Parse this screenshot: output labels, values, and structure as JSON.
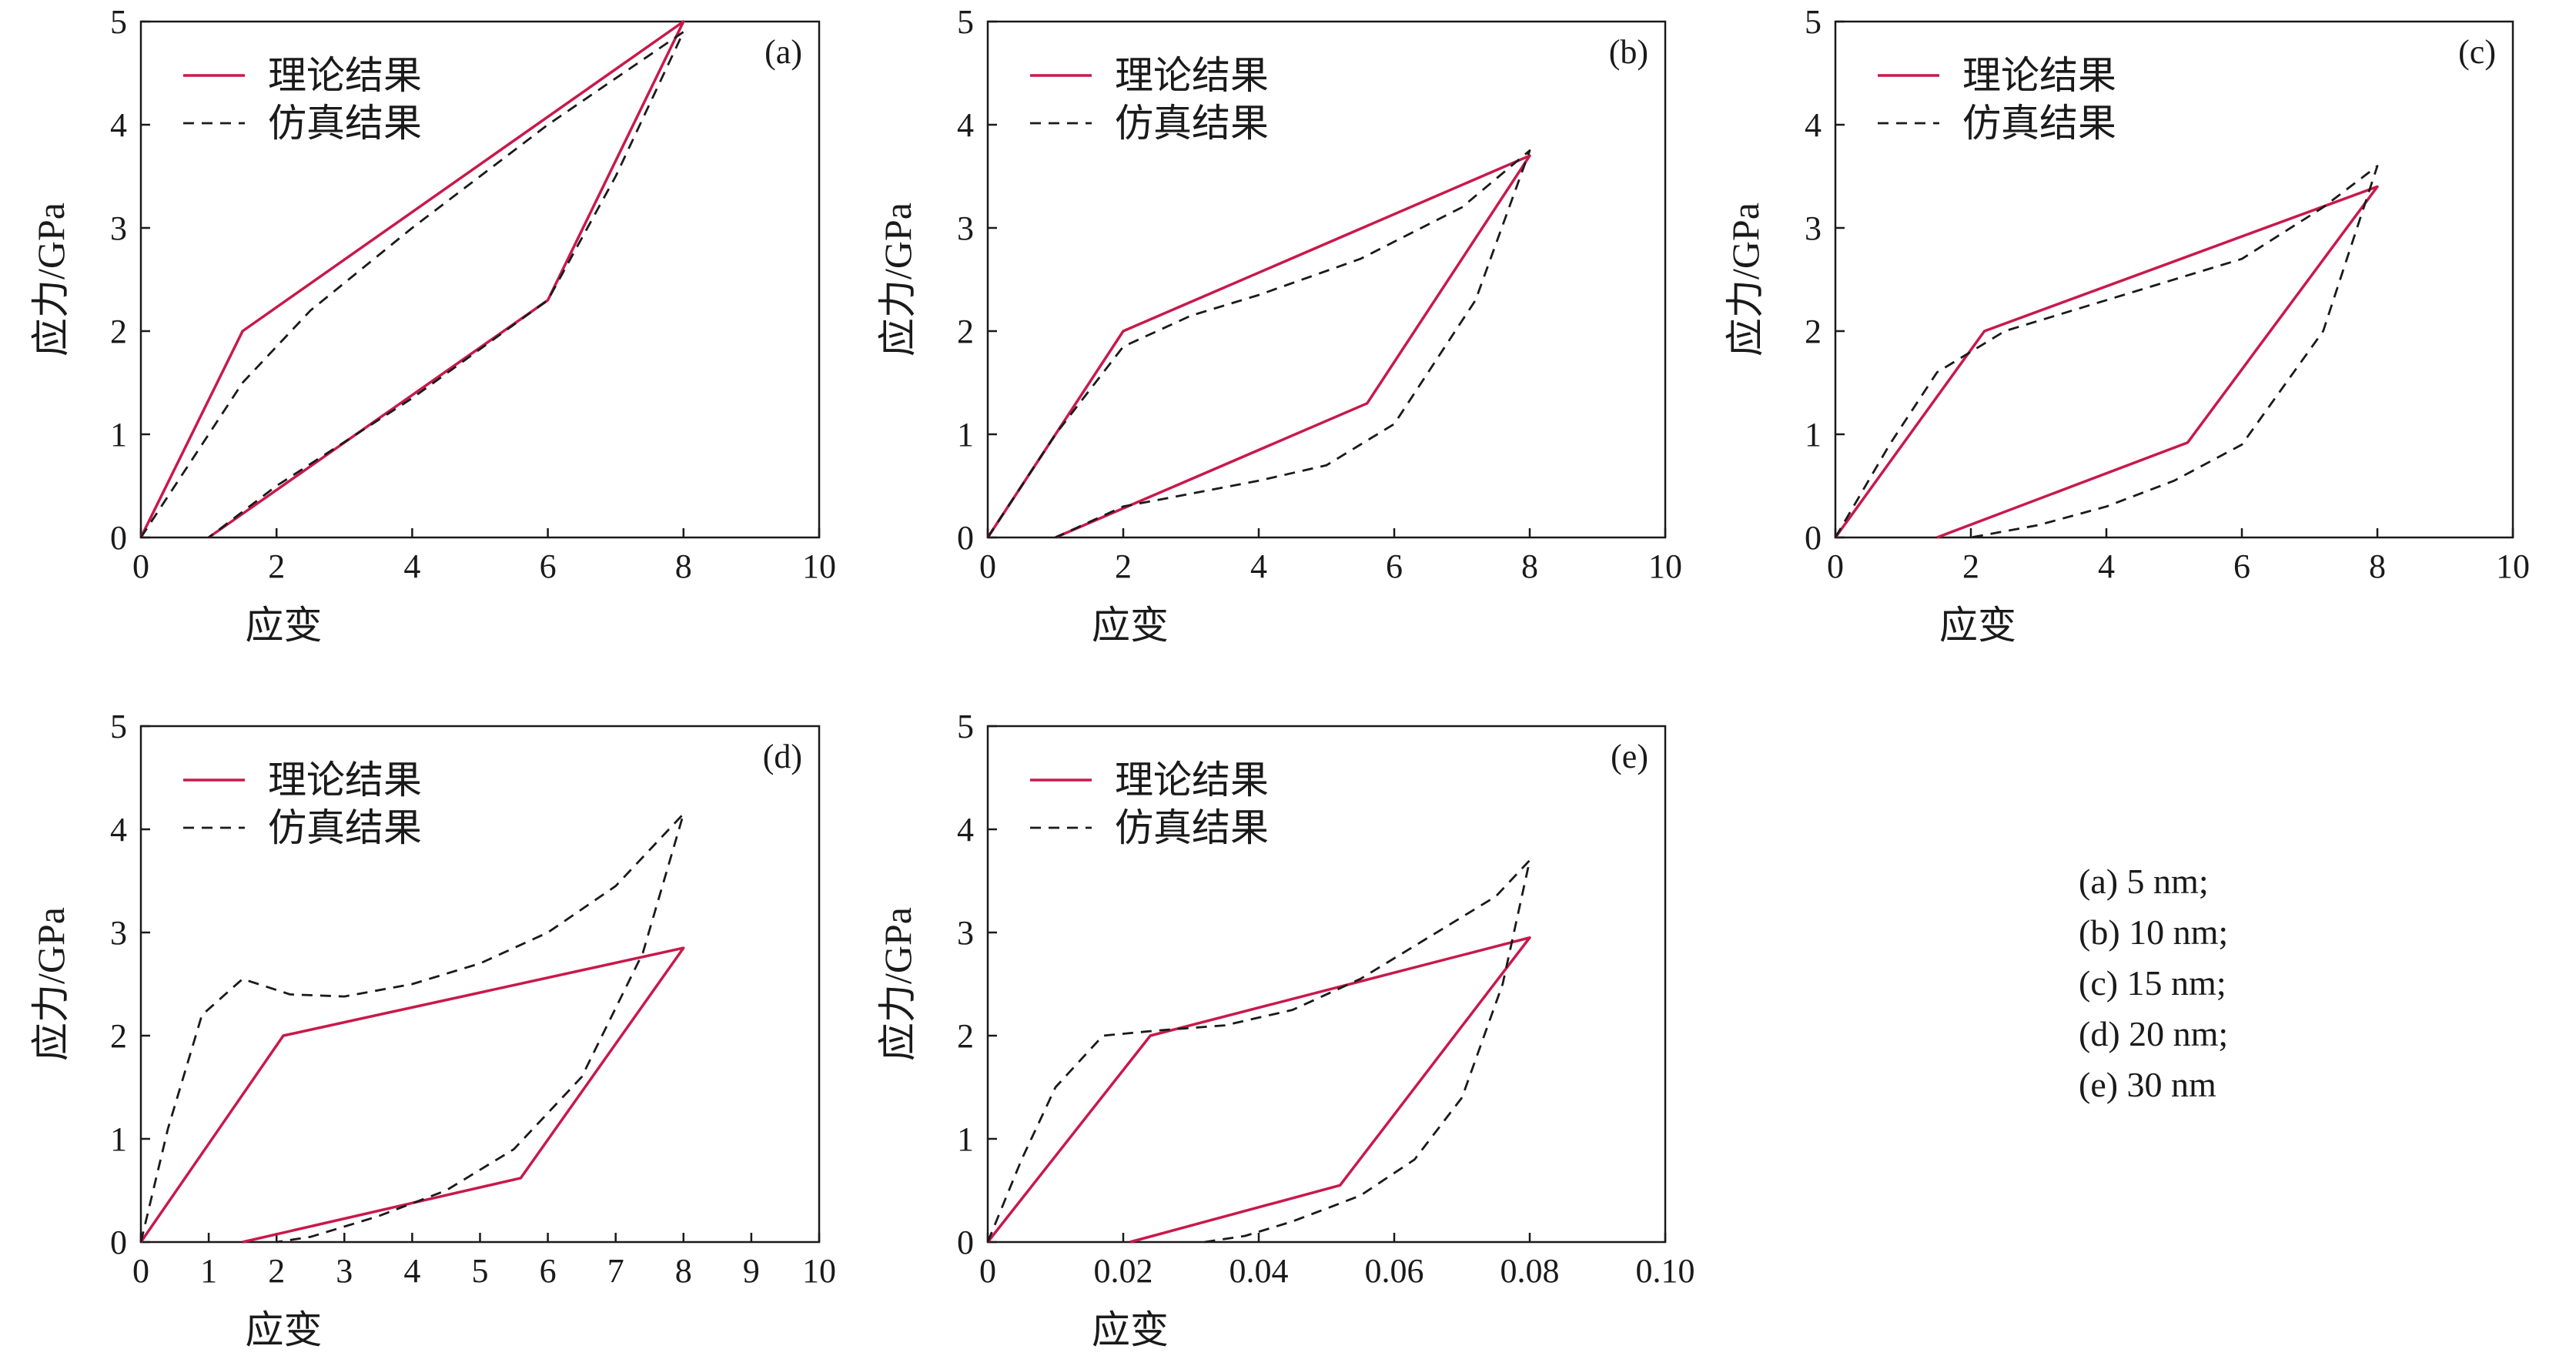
{
  "colors": {
    "theory": "#c8194b",
    "simulation": "#1a1a1a",
    "axes": "#1a1a1a"
  },
  "caption": [
    "(a) 5 nm;",
    "(b) 10 nm;",
    "(c) 15 nm;",
    "(d) 20 nm;",
    "(e) 30 nm"
  ],
  "chart_data": [
    {
      "type": "line",
      "panel": "(a)",
      "xlabel": "应变",
      "ylabel": "应力/GPa",
      "xlim": [
        0,
        10
      ],
      "ylim": [
        0,
        5
      ],
      "xticks": [
        0,
        2,
        4,
        6,
        8,
        10
      ],
      "xtick_labels": [
        "0",
        "2",
        "4",
        "6",
        "8",
        "10"
      ],
      "yticks": [
        0,
        1,
        2,
        3,
        4,
        5
      ],
      "ytick_labels": [
        "0",
        "1",
        "2",
        "3",
        "4",
        "5"
      ],
      "legend": "top-left",
      "grid": false,
      "series": [
        {
          "name": "理论结果",
          "style": "solid",
          "x": [
            0,
            1.5,
            8,
            6,
            1
          ],
          "y": [
            0,
            2,
            5,
            2.3,
            0
          ]
        },
        {
          "name": "仿真结果",
          "style": "dashed",
          "x": [
            0,
            0.8,
            1.5,
            2.5,
            4,
            6,
            8,
            7,
            6,
            4,
            2,
            1
          ],
          "y": [
            0,
            0.8,
            1.5,
            2.2,
            3.0,
            4.0,
            4.9,
            3.5,
            2.3,
            1.35,
            0.5,
            0
          ]
        }
      ]
    },
    {
      "type": "line",
      "panel": "(b)",
      "xlabel": "应变",
      "ylabel": "应力/GPa",
      "xlim": [
        0,
        10
      ],
      "ylim": [
        0,
        5
      ],
      "xticks": [
        0,
        2,
        4,
        6,
        8,
        10
      ],
      "xtick_labels": [
        "0",
        "2",
        "4",
        "6",
        "8",
        "10"
      ],
      "yticks": [
        0,
        1,
        2,
        3,
        4,
        5
      ],
      "ytick_labels": [
        "0",
        "1",
        "2",
        "3",
        "4",
        "5"
      ],
      "legend": "top-left",
      "grid": false,
      "series": [
        {
          "name": "理论结果",
          "style": "solid",
          "x": [
            0,
            2,
            8,
            5.6,
            1
          ],
          "y": [
            0,
            2,
            3.7,
            1.3,
            0
          ]
        },
        {
          "name": "仿真结果",
          "style": "dashed",
          "x": [
            0,
            1,
            2,
            3,
            4,
            5.5,
            7,
            8,
            7.2,
            6,
            5,
            4,
            2,
            1
          ],
          "y": [
            0,
            1.0,
            1.85,
            2.15,
            2.35,
            2.7,
            3.2,
            3.75,
            2.3,
            1.1,
            0.7,
            0.55,
            0.3,
            0
          ]
        }
      ]
    },
    {
      "type": "line",
      "panel": "(c)",
      "xlabel": "应变",
      "ylabel": "应力/GPa",
      "xlim": [
        0,
        10
      ],
      "ylim": [
        0,
        5
      ],
      "xticks": [
        0,
        2,
        4,
        6,
        8,
        10
      ],
      "xtick_labels": [
        "0",
        "2",
        "4",
        "6",
        "8",
        "10"
      ],
      "yticks": [
        0,
        1,
        2,
        3,
        4,
        5
      ],
      "ytick_labels": [
        "0",
        "1",
        "2",
        "3",
        "4",
        "5"
      ],
      "legend": "top-left",
      "grid": false,
      "series": [
        {
          "name": "理论结果",
          "style": "solid",
          "x": [
            0,
            2.2,
            8,
            5.2,
            1.5
          ],
          "y": [
            0,
            2,
            3.4,
            0.92,
            0
          ]
        },
        {
          "name": "仿真结果",
          "style": "dashed",
          "x": [
            0,
            0.8,
            1.5,
            2.5,
            4,
            6,
            7.2,
            8,
            7.2,
            6,
            5,
            4,
            3,
            2
          ],
          "y": [
            0,
            0.9,
            1.6,
            2.0,
            2.3,
            2.7,
            3.2,
            3.6,
            2.0,
            0.9,
            0.55,
            0.3,
            0.12,
            0
          ]
        }
      ]
    },
    {
      "type": "line",
      "panel": "(d)",
      "xlabel": "应变",
      "ylabel": "应力/GPa",
      "xlim": [
        0,
        10
      ],
      "ylim": [
        0,
        5
      ],
      "xticks": [
        0,
        1,
        2,
        3,
        4,
        5,
        6,
        7,
        8,
        9,
        10
      ],
      "xtick_labels": [
        "0",
        "1",
        "2",
        "3",
        "4",
        "5",
        "6",
        "7",
        "8",
        "9",
        "10"
      ],
      "yticks": [
        0,
        1,
        2,
        3,
        4,
        5
      ],
      "ytick_labels": [
        "0",
        "1",
        "2",
        "3",
        "4",
        "5"
      ],
      "legend": "top-left",
      "grid": false,
      "series": [
        {
          "name": "理论结果",
          "style": "solid",
          "x": [
            0,
            2.1,
            8,
            5.6,
            1.5
          ],
          "y": [
            0,
            2,
            2.85,
            0.62,
            0
          ]
        },
        {
          "name": "仿真结果",
          "style": "dashed",
          "x": [
            0,
            0.4,
            0.9,
            1.5,
            2.2,
            3,
            4,
            5,
            6,
            7,
            8,
            7.4,
            6.5,
            5.5,
            4.5,
            3.5,
            2.5,
            2
          ],
          "y": [
            0,
            1.1,
            2.2,
            2.55,
            2.4,
            2.38,
            2.5,
            2.7,
            3.0,
            3.45,
            4.15,
            2.8,
            1.6,
            0.9,
            0.5,
            0.25,
            0.05,
            0
          ]
        }
      ]
    },
    {
      "type": "line",
      "panel": "(e)",
      "xlabel": "应变",
      "ylabel": "应力/GPa",
      "xlim": [
        0,
        0.1
      ],
      "ylim": [
        0,
        5
      ],
      "xticks": [
        0,
        0.02,
        0.04,
        0.06,
        0.08,
        0.1
      ],
      "xtick_labels": [
        "0",
        "0.02",
        "0.04",
        "0.06",
        "0.08",
        "0.10"
      ],
      "yticks": [
        0,
        1,
        2,
        3,
        4,
        5
      ],
      "ytick_labels": [
        "0",
        "1",
        "2",
        "3",
        "4",
        "5"
      ],
      "legend": "top-left",
      "grid": false,
      "series": [
        {
          "name": "理论结果",
          "style": "solid",
          "x": [
            0,
            0.024,
            0.08,
            0.052,
            0.021
          ],
          "y": [
            0,
            2,
            2.95,
            0.55,
            0
          ]
        },
        {
          "name": "仿真结果",
          "style": "dashed",
          "x": [
            0,
            0.005,
            0.01,
            0.017,
            0.025,
            0.035,
            0.045,
            0.055,
            0.065,
            0.075,
            0.08,
            0.076,
            0.07,
            0.063,
            0.055,
            0.045,
            0.038,
            0.032
          ],
          "y": [
            0,
            0.8,
            1.5,
            2.0,
            2.05,
            2.1,
            2.25,
            2.55,
            2.95,
            3.35,
            3.7,
            2.5,
            1.4,
            0.8,
            0.45,
            0.2,
            0.06,
            0
          ]
        }
      ]
    }
  ]
}
